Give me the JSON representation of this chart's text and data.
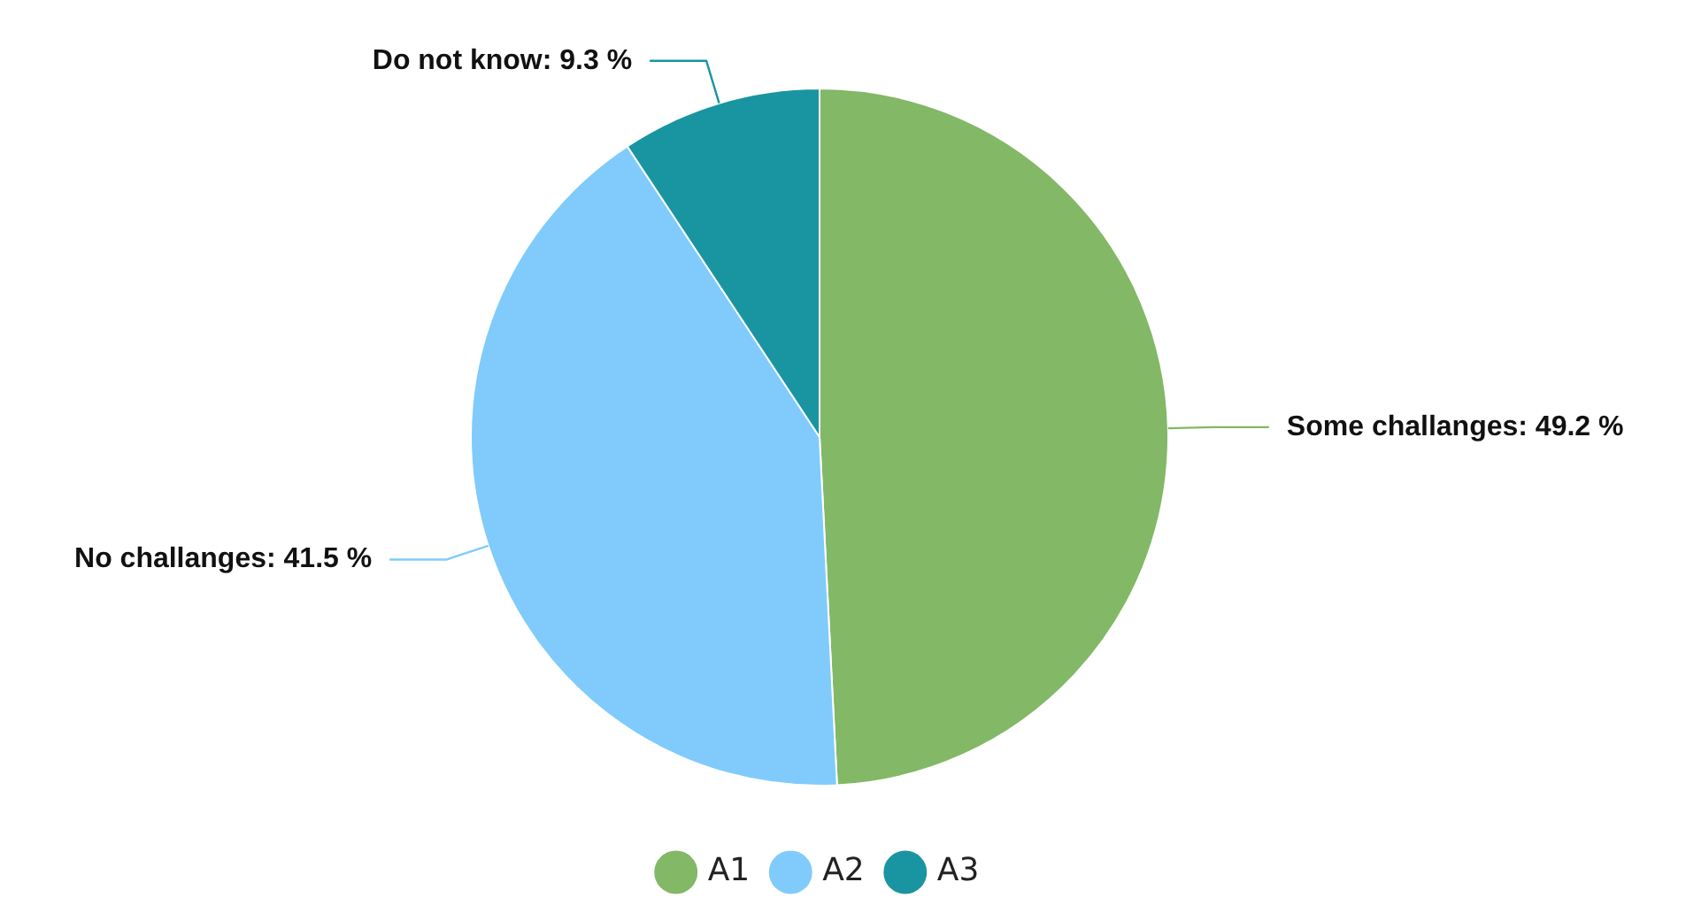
{
  "chart_data": {
    "type": "pie",
    "categories": [
      "A1",
      "A2",
      "A3"
    ],
    "values": [
      49.2,
      41.5,
      9.3
    ],
    "colors": [
      "#82b866",
      "#80cbfb",
      "#1995a1"
    ],
    "value_labels": [
      "Some challanges: 49.2 %",
      "No challanges: 41.5 %",
      "Do not know: 9.3 %"
    ],
    "legend": "bottom"
  }
}
